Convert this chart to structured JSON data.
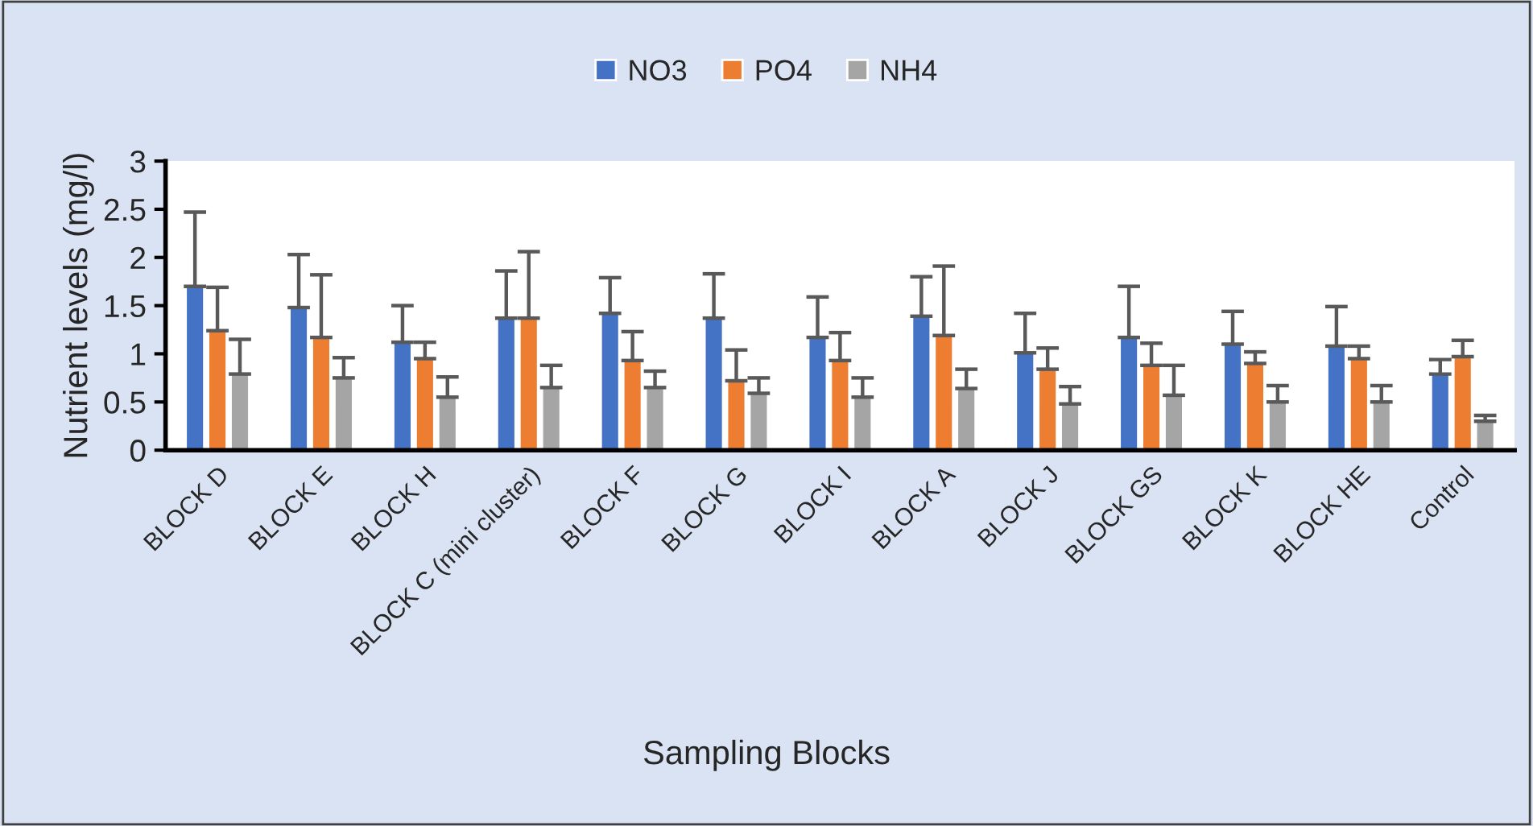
{
  "chart_data": {
    "type": "bar",
    "xlabel": "Sampling Blocks",
    "ylabel": "Nutrient levels (mg/l)",
    "categories": [
      "BLOCK D",
      "BLOCK E",
      "BLOCK H",
      "BLOCK C (mini cluster)",
      "BLOCK F",
      "BLOCK G",
      "BLOCK I",
      "BLOCK A",
      "BLOCK J",
      "BLOCK GS",
      "BLOCK K",
      "BLOCK HE",
      "Control"
    ],
    "series": [
      {
        "name": "NO3",
        "color": "#4472c4",
        "values": [
          1.7,
          1.48,
          1.12,
          1.37,
          1.42,
          1.37,
          1.17,
          1.39,
          1.01,
          1.17,
          1.1,
          1.08,
          0.79
        ],
        "errors": [
          [
            1.7,
            2.47
          ],
          [
            1.48,
            2.03
          ],
          [
            1.12,
            1.5
          ],
          [
            1.37,
            1.86
          ],
          [
            1.42,
            1.79
          ],
          [
            1.37,
            1.83
          ],
          [
            1.17,
            1.59
          ],
          [
            1.39,
            1.8
          ],
          [
            1.01,
            1.42
          ],
          [
            1.17,
            1.7
          ],
          [
            1.1,
            1.44
          ],
          [
            1.08,
            1.49
          ],
          [
            0.79,
            0.94
          ]
        ]
      },
      {
        "name": "PO4",
        "color": "#ed7d31",
        "values": [
          1.24,
          1.17,
          0.95,
          1.37,
          0.93,
          0.72,
          0.93,
          1.19,
          0.84,
          0.88,
          0.9,
          0.95,
          0.97
        ],
        "errors": [
          [
            1.24,
            1.69
          ],
          [
            1.17,
            1.82
          ],
          [
            0.95,
            1.12
          ],
          [
            1.37,
            2.06
          ],
          [
            0.93,
            1.23
          ],
          [
            0.72,
            1.04
          ],
          [
            0.93,
            1.22
          ],
          [
            1.19,
            1.91
          ],
          [
            0.84,
            1.06
          ],
          [
            0.88,
            1.11
          ],
          [
            0.9,
            1.02
          ],
          [
            0.95,
            1.08
          ],
          [
            0.97,
            1.14
          ]
        ]
      },
      {
        "name": "NH4",
        "color": "#a5a5a5",
        "values": [
          0.79,
          0.75,
          0.55,
          0.65,
          0.65,
          0.59,
          0.55,
          0.64,
          0.48,
          0.57,
          0.5,
          0.5,
          0.3
        ],
        "errors": [
          [
            0.79,
            1.15
          ],
          [
            0.75,
            0.96
          ],
          [
            0.55,
            0.76
          ],
          [
            0.65,
            0.88
          ],
          [
            0.65,
            0.82
          ],
          [
            0.59,
            0.75
          ],
          [
            0.55,
            0.75
          ],
          [
            0.64,
            0.84
          ],
          [
            0.48,
            0.66
          ],
          [
            0.57,
            0.88
          ],
          [
            0.5,
            0.67
          ],
          [
            0.5,
            0.67
          ],
          [
            0.3,
            0.36
          ]
        ]
      }
    ],
    "ylim": [
      0,
      3
    ],
    "yticks": [
      0,
      0.5,
      1,
      1.5,
      2,
      2.5,
      3
    ],
    "grid": false,
    "legend": "top"
  }
}
